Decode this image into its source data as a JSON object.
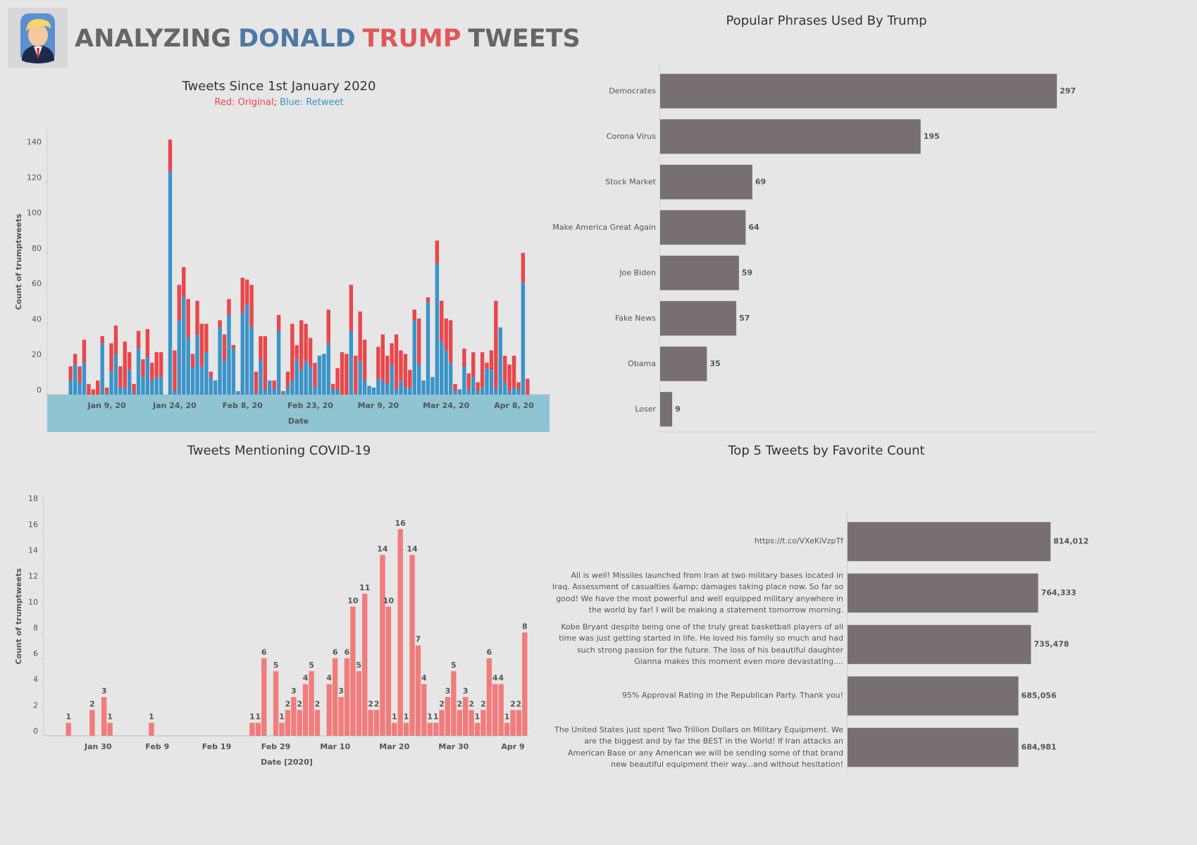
{
  "header": {
    "title_words": [
      "ANALYZING",
      "DONALD",
      "TRUMP",
      "TWEETS"
    ],
    "title_colors": [
      "#666666",
      "#4e79a7",
      "#e15759",
      "#666666"
    ]
  },
  "chart_data": [
    {
      "type": "bar",
      "stacked": true,
      "title": "Tweets Since 1st January 2020",
      "legend_separator": "; ",
      "xlabel": "Date",
      "ylabel": "Count of trumptweets",
      "categories": [
        null,
        null,
        null,
        null,
        null,
        null,
        null,
        null,
        "Jan 9, 20",
        null,
        null,
        null,
        null,
        null,
        null,
        null,
        null,
        null,
        null,
        null,
        null,
        null,
        null,
        "Jan 24, 20",
        null,
        null,
        null,
        null,
        null,
        null,
        null,
        null,
        null,
        null,
        null,
        null,
        null,
        null,
        "Feb 8, 20",
        null,
        null,
        null,
        null,
        null,
        null,
        null,
        null,
        null,
        null,
        null,
        null,
        null,
        null,
        "Feb 23, 20",
        null,
        null,
        null,
        null,
        null,
        null,
        null,
        null,
        null,
        null,
        null,
        null,
        null,
        null,
        "Mar 9, 20",
        null,
        null,
        null,
        null,
        null,
        null,
        null,
        null,
        null,
        null,
        null,
        null,
        null,
        null,
        "Mar 24, 20",
        null,
        null,
        null,
        null,
        null,
        null,
        null,
        null,
        null,
        null,
        null,
        null,
        null,
        null,
        "Apr 8, 20",
        null,
        null,
        null
      ],
      "series": [
        {
          "name": "Red: Original",
          "color": "#e8474c",
          "values": [
            8,
            6,
            9,
            13,
            6,
            3,
            8,
            4,
            3,
            16,
            16,
            12,
            26,
            10,
            5,
            10,
            10,
            16,
            10,
            14,
            14,
            0,
            18,
            23,
            20,
            17,
            22,
            8,
            19,
            24,
            16,
            3,
            0,
            4,
            15,
            9,
            2,
            0,
            20,
            14,
            24,
            12,
            13,
            30,
            0,
            5,
            9,
            1,
            9,
            32,
            8,
            28,
            21,
            16,
            14,
            0,
            0,
            19,
            3,
            12,
            24,
            23,
            26,
            21,
            28,
            23,
            0,
            0,
            18,
            26,
            16,
            12,
            31,
            17,
            19,
            10,
            6,
            26,
            0,
            3,
            0,
            13,
            23,
            18,
            24,
            4,
            0,
            10,
            9,
            14,
            5,
            20,
            3,
            11,
            50,
            0,
            15,
            15,
            18,
            4,
            17,
            9
          ]
        },
        {
          "name": "Blue: Retweet",
          "color": "#3a94c8",
          "values": [
            8,
            17,
            7,
            18,
            0,
            0,
            0,
            29,
            1,
            13,
            23,
            4,
            4,
            14,
            1,
            26,
            10,
            21,
            8,
            10,
            10,
            0,
            126,
            2,
            42,
            55,
            32,
            15,
            34,
            16,
            24,
            10,
            8,
            38,
            19,
            45,
            26,
            2,
            46,
            51,
            38,
            1,
            20,
            3,
            8,
            3,
            36,
            1,
            4,
            8,
            20,
            14,
            19,
            16,
            4,
            22,
            23,
            29,
            3,
            3,
            0,
            0,
            36,
            1,
            19,
            8,
            5,
            4,
            9,
            8,
            6,
            17,
            3,
            8,
            4,
            4,
            42,
            17,
            8,
            52,
            10,
            74,
            30,
            25,
            18,
            2,
            3,
            16,
            3,
            10,
            2,
            4,
            15,
            14,
            3,
            38,
            7,
            2,
            4,
            3,
            63,
            0
          ]
        }
      ],
      "ylim": [
        0,
        150
      ],
      "yticks": [
        0,
        20,
        40,
        60,
        80,
        100,
        120,
        140
      ]
    },
    {
      "type": "bar",
      "orientation": "horizontal",
      "title": "Popular Phrases Used By Trump",
      "categories": [
        "Democrates",
        "Corona Virus",
        "Stock Market",
        "Make America Great Again",
        "Joe Biden",
        "Fake News",
        "Obama",
        "Loser"
      ],
      "values": [
        297,
        195,
        69,
        64,
        59,
        57,
        35,
        9
      ],
      "color": "#787070",
      "xlim": [
        0,
        327
      ],
      "show_value_labels": true
    },
    {
      "type": "bar",
      "title": "Tweets Mentioning COVID-19",
      "xlabel": "Date [2020]",
      "ylabel": "Count of trumptweets",
      "categories": [
        null,
        null,
        null,
        null,
        null,
        "Jan 30",
        null,
        null,
        null,
        null,
        null,
        null,
        null,
        null,
        null,
        "Feb 9",
        null,
        null,
        null,
        null,
        null,
        null,
        null,
        null,
        null,
        "Feb 19",
        null,
        null,
        null,
        null,
        null,
        null,
        null,
        null,
        null,
        "Feb 29",
        null,
        null,
        null,
        null,
        null,
        null,
        null,
        null,
        null,
        "Mar 10",
        null,
        null,
        null,
        null,
        null,
        null,
        null,
        null,
        null,
        "Mar 20",
        null,
        null,
        null,
        null,
        null,
        null,
        null,
        null,
        null,
        "Mar 30",
        null,
        null,
        null,
        null,
        null,
        null,
        null,
        null,
        null,
        "Apr 9",
        null,
        null
      ],
      "values": [
        1,
        null,
        null,
        null,
        2,
        null,
        3,
        1,
        null,
        null,
        null,
        null,
        null,
        null,
        1,
        null,
        null,
        null,
        null,
        null,
        null,
        null,
        null,
        null,
        null,
        null,
        null,
        null,
        null,
        null,
        null,
        1,
        1,
        6,
        null,
        5,
        1,
        2,
        3,
        2,
        4,
        5,
        2,
        null,
        4,
        6,
        3,
        6,
        10,
        5,
        11,
        2,
        2,
        14,
        10,
        1,
        16,
        1,
        14,
        7,
        4,
        1,
        1,
        2,
        3,
        5,
        2,
        3,
        2,
        1,
        2,
        6,
        4,
        4,
        1,
        2,
        2,
        8
      ],
      "color": "#f07c7c",
      "ylim": [
        0,
        18.5
      ],
      "yticks": [
        0,
        2,
        4,
        6,
        8,
        10,
        12,
        14,
        16,
        18
      ],
      "show_value_labels": true
    },
    {
      "type": "bar",
      "orientation": "horizontal",
      "title": "Top 5 Tweets by Favorite Count",
      "categories": [
        "https://t.co/VXeKiVzpTf",
        "All is well! Missiles launched from Iran at two military bases located in Iraq. Assessment of casualties &amp; damages taking place now. So far so good! We have the most powerful and well equipped military anywhere in the world by far! I will be making a statement tomorrow morning.",
        "Kobe Bryant despite being one of the truly great basketball players of all time was just getting started in life. He loved his family so much and had such strong passion for the future. The loss of his beautiful daughter Gianna makes this moment even more devastating....",
        "95% Approval Rating in the Republican Party. Thank you!",
        "The United States just spent Two Trillion Dollars on Military Equipment. We are the biggest and by far the BEST in the World! If Iran attacks an American Base or any American we will be sending some of that brand new beautiful equipment their way...and without hesitation!"
      ],
      "values": [
        814012,
        764333,
        735478,
        685056,
        684981
      ],
      "value_labels": [
        "814,012",
        "764,333",
        "735,478",
        "685,056",
        "684,981"
      ],
      "color": "#787070",
      "xlim": [
        0,
        1000000
      ],
      "show_value_labels": true
    }
  ]
}
